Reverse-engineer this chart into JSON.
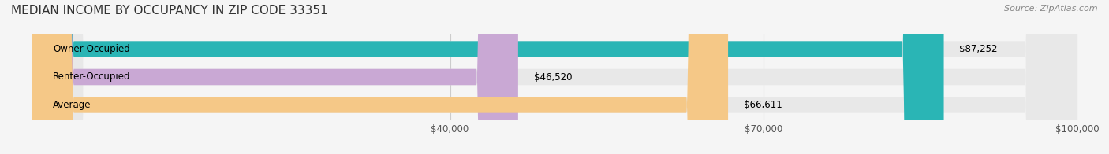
{
  "title": "MEDIAN INCOME BY OCCUPANCY IN ZIP CODE 33351",
  "source": "Source: ZipAtlas.com",
  "categories": [
    "Owner-Occupied",
    "Renter-Occupied",
    "Average"
  ],
  "values": [
    87252,
    46520,
    66611
  ],
  "bar_colors": [
    "#2ab5b5",
    "#c9a8d4",
    "#f5c887"
  ],
  "bar_labels": [
    "$87,252",
    "$46,520",
    "$66,611"
  ],
  "xlim": [
    0,
    100000
  ],
  "xticks": [
    40000,
    70000,
    100000
  ],
  "xtick_labels": [
    "$40,000",
    "$70,000",
    "$100,000"
  ],
  "bg_color": "#f5f5f5",
  "bar_bg_color": "#e8e8e8",
  "title_fontsize": 11,
  "source_fontsize": 8,
  "label_fontsize": 8.5,
  "tick_fontsize": 8.5
}
